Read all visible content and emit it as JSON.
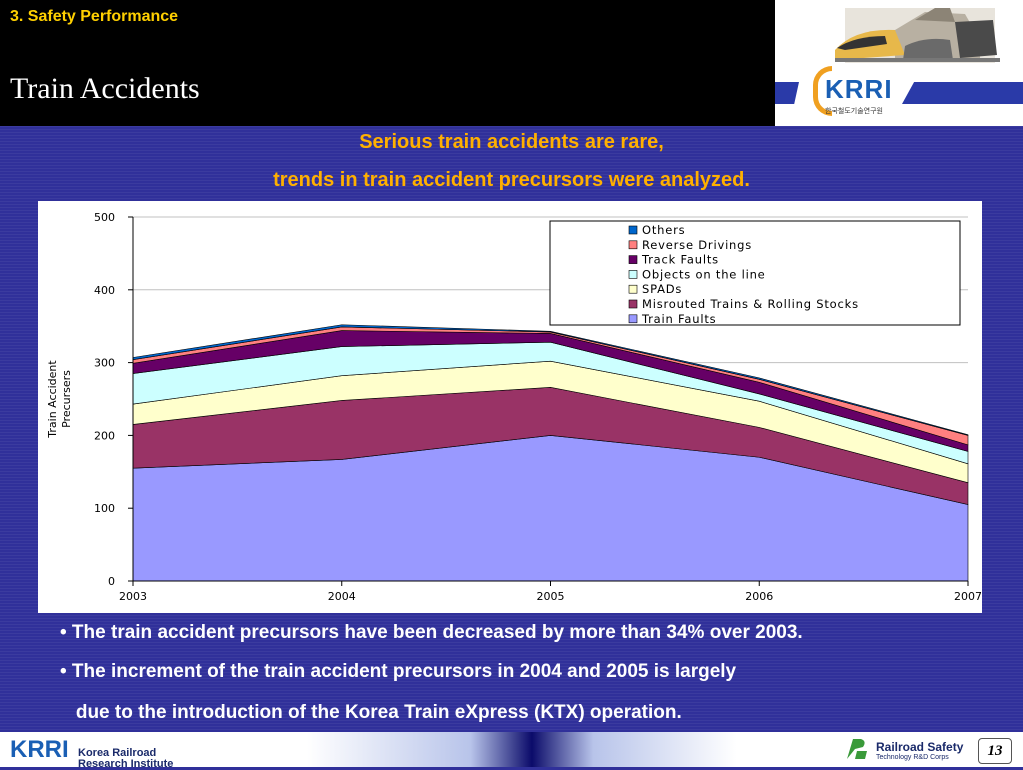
{
  "header": {
    "section": "3. Safety Performance",
    "title": "Train Accidents",
    "logo_text": "KRRI",
    "logo_subtext": "한국철도기술연구원"
  },
  "subtitle": {
    "line1": "Serious train accidents are rare,",
    "line2": "trends in train accident precursors were analyzed."
  },
  "bullets": [
    "• The train accident precursors have been decreased by more than 34% over 2003.",
    "• The increment of the train accident precursors in 2004 and 2005 is largely",
    "   due to the introduction of the Korea Train eXpress (KTX) operation."
  ],
  "footer": {
    "left_logo": "KRRI",
    "left_line1": "Korea Railroad",
    "left_line2": "Research Institute",
    "right_line1": "Railroad  Safety",
    "right_line2": "Technology R&D Corps",
    "page": "13"
  },
  "chart_data": {
    "type": "area",
    "stacked": true,
    "title": "",
    "xlabel": "",
    "ylabel": "Train Accident Precursers",
    "x": [
      "2003",
      "2004",
      "2005",
      "2006",
      "2007"
    ],
    "ylim": [
      0,
      500
    ],
    "yticks": [
      0,
      100,
      200,
      300,
      400,
      500
    ],
    "grid": true,
    "legend_position": "top-right",
    "series": [
      {
        "name": "Train Faults",
        "color": "#9999ff",
        "values": [
          155,
          167,
          200,
          170,
          105
        ]
      },
      {
        "name": "Misrouted Trains & Rolling Stocks",
        "color": "#993366",
        "values": [
          60,
          81,
          66,
          41,
          30
        ]
      },
      {
        "name": "SPADs",
        "color": "#ffffcc",
        "values": [
          28,
          34,
          36,
          36,
          26
        ]
      },
      {
        "name": "Objects on the line",
        "color": "#ccffff",
        "values": [
          42,
          40,
          26,
          10,
          17
        ]
      },
      {
        "name": "Track Faults",
        "color": "#660066",
        "values": [
          14,
          22,
          12,
          16,
          9
        ]
      },
      {
        "name": "Reverse Drivings",
        "color": "#ff8080",
        "values": [
          5,
          5,
          2,
          4,
          13
        ]
      },
      {
        "name": "Others",
        "color": "#0066cc",
        "values": [
          3,
          3,
          1,
          2,
          1
        ]
      }
    ]
  }
}
